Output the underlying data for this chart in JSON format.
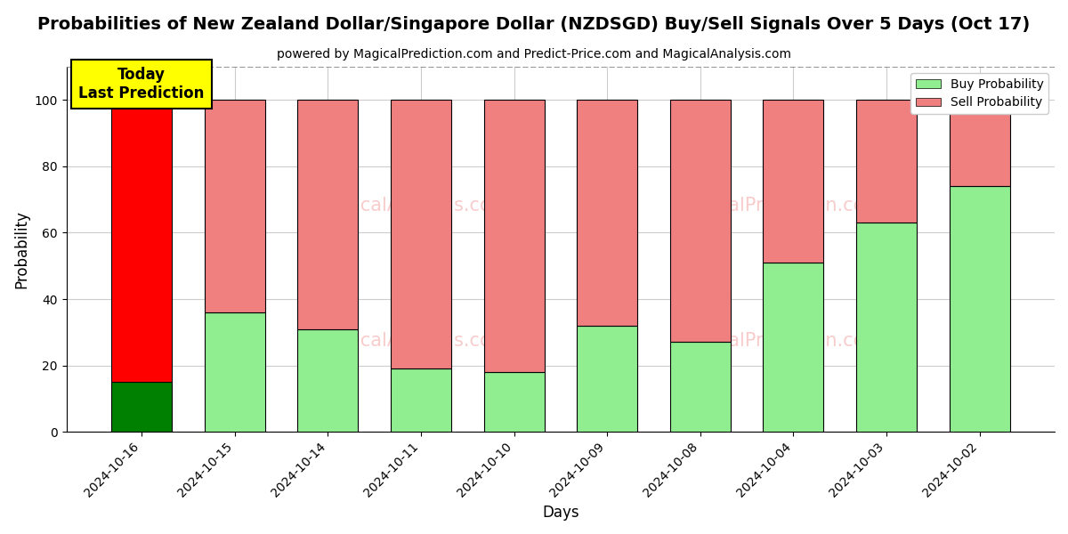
{
  "title": "Probabilities of New Zealand Dollar/Singapore Dollar (NZDSGD) Buy/Sell Signals Over 5 Days (Oct 17)",
  "subtitle": "powered by MagicalPrediction.com and Predict-Price.com and MagicalAnalysis.com",
  "xlabel": "Days",
  "ylabel": "Probability",
  "categories": [
    "2024-10-16",
    "2024-10-15",
    "2024-10-14",
    "2024-10-11",
    "2024-10-10",
    "2024-10-09",
    "2024-10-08",
    "2024-10-04",
    "2024-10-03",
    "2024-10-02"
  ],
  "buy_values": [
    15,
    36,
    31,
    19,
    18,
    32,
    27,
    51,
    63,
    74
  ],
  "sell_values": [
    85,
    64,
    69,
    81,
    82,
    68,
    73,
    49,
    37,
    26
  ],
  "today_buy_color": "#008000",
  "today_sell_color": "#ff0000",
  "buy_color": "#90EE90",
  "sell_color": "#F08080",
  "today_annotation_text": "Today\nLast Prediction",
  "today_annotation_bg": "#ffff00",
  "legend_buy": "Buy Probability",
  "legend_sell": "Sell Probability",
  "ylim_max": 110,
  "dashed_line_y": 110,
  "yticks": [
    0,
    20,
    40,
    60,
    80,
    100
  ],
  "background_color": "#ffffff",
  "grid_color": "#cccccc",
  "title_fontsize": 14,
  "subtitle_fontsize": 10,
  "bar_width": 0.65
}
